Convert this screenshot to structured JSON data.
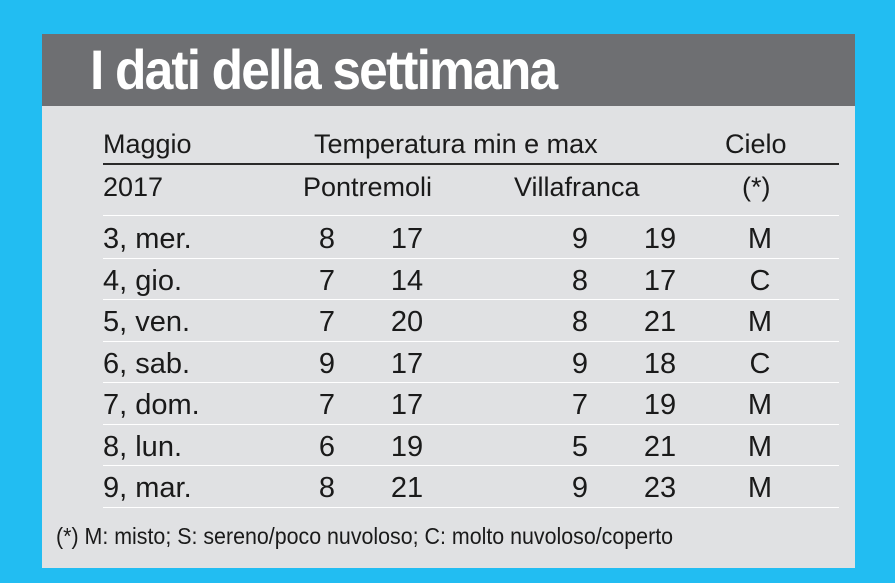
{
  "title": "I dati della settimana",
  "header": {
    "col_month": "Maggio",
    "col_temp": "Temperatura min e max",
    "col_sky": "Cielo",
    "year": "2017",
    "loc1": "Pontremoli",
    "loc2": "Villafranca",
    "sky_note_mark": "(*)"
  },
  "rows": [
    {
      "day": "3, mer.",
      "p_min": "8",
      "p_max": "17",
      "v_min": "9",
      "v_max": "19",
      "sky": "M"
    },
    {
      "day": "4, gio.",
      "p_min": "7",
      "p_max": "14",
      "v_min": "8",
      "v_max": "17",
      "sky": "C"
    },
    {
      "day": "5, ven.",
      "p_min": "7",
      "p_max": "20",
      "v_min": "8",
      "v_max": "21",
      "sky": "M"
    },
    {
      "day": "6, sab.",
      "p_min": "9",
      "p_max": "17",
      "v_min": "9",
      "v_max": "18",
      "sky": "C"
    },
    {
      "day": "7, dom.",
      "p_min": "7",
      "p_max": "17",
      "v_min": "7",
      "v_max": "19",
      "sky": "M"
    },
    {
      "day": "8, lun.",
      "p_min": "6",
      "p_max": "19",
      "v_min": "5",
      "v_max": "21",
      "sky": "M"
    },
    {
      "day": "9, mar.",
      "p_min": "8",
      "p_max": "21",
      "v_min": "9",
      "v_max": "23",
      "sky": "M"
    }
  ],
  "footnote": "(*) M: misto; S: sereno/poco nuvoloso; C: molto nuvoloso/coperto",
  "colors": {
    "background": "#22bdf2",
    "card": "#e0e1e3",
    "title_bar": "#6e6f72",
    "title_text": "#ffffff"
  }
}
